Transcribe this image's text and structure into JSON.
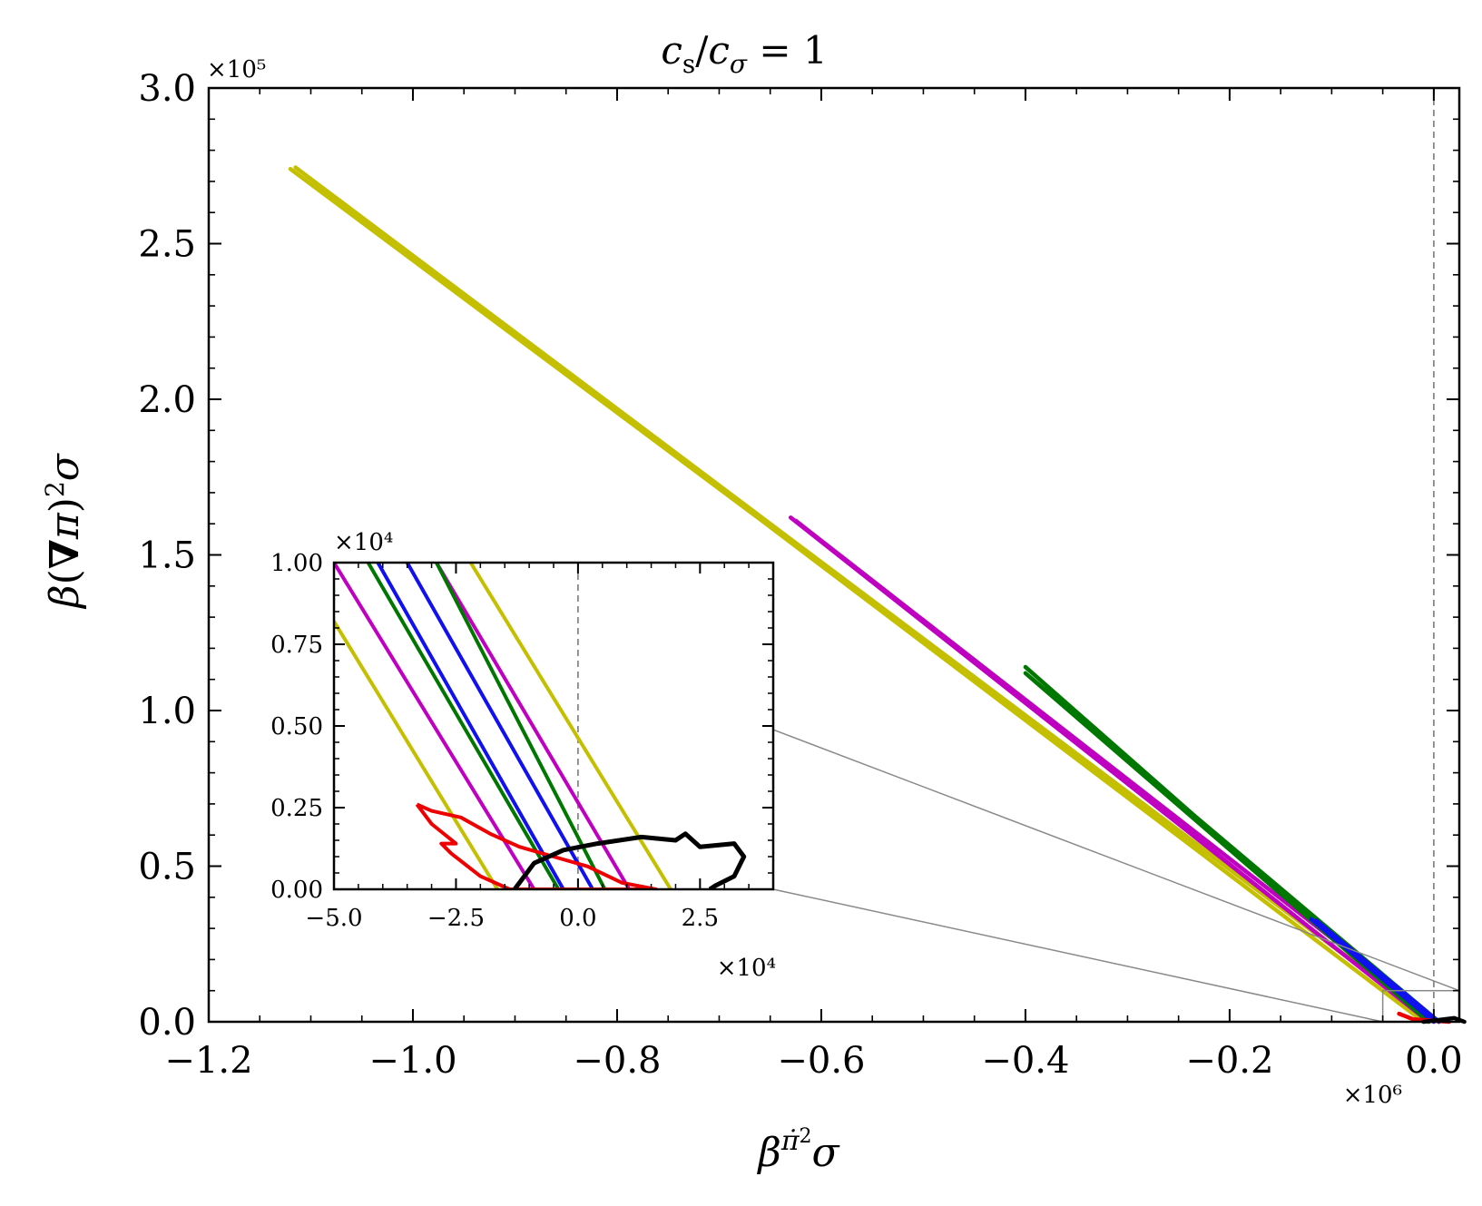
{
  "chart_data": {
    "type": "line",
    "title": "c_s/c_σ = 1",
    "xlabel": "βπ̇²σ",
    "ylabel": "β(∇π)²σ",
    "x_multiplier": "×10⁶",
    "y_multiplier": "×10⁵",
    "xlim": [
      -1.2,
      0.025
    ],
    "ylim": [
      0.0,
      3.0
    ],
    "x_ticks": [
      -1.2,
      -1.0,
      -0.8,
      -0.6,
      -0.4,
      -0.2,
      0.0
    ],
    "x_tick_labels": [
      "−1.2",
      "−1.0",
      "−0.8",
      "−0.6",
      "−0.4",
      "−0.2",
      "0.0"
    ],
    "y_ticks": [
      0.0,
      0.5,
      1.0,
      1.5,
      2.0,
      2.5,
      3.0
    ],
    "y_tick_labels": [
      "0.0",
      "0.5",
      "1.0",
      "1.5",
      "2.0",
      "2.5",
      "3.0"
    ],
    "vline_x": 0.0,
    "zoom_box": {
      "x": [
        -0.05,
        0.04
      ],
      "y": [
        0.0,
        0.1
      ]
    },
    "series": [
      {
        "name": "yellow",
        "color": "#c4bf00",
        "points": [
          [
            -1.12,
            2.74
          ],
          [
            0.0,
            0.0
          ],
          [
            -1.115,
            2.745
          ],
          [
            -0.01,
            0.0
          ]
        ]
      },
      {
        "name": "magenta",
        "color": "#c000c0",
        "points": [
          [
            -0.63,
            1.62
          ],
          [
            -0.005,
            0.0
          ],
          [
            -0.625,
            1.61
          ],
          [
            0.005,
            0.0
          ]
        ]
      },
      {
        "name": "green",
        "color": "#007700",
        "points": [
          [
            -0.4,
            1.14
          ],
          [
            -0.005,
            0.0
          ],
          [
            -0.4,
            1.12
          ],
          [
            0.005,
            0.0
          ]
        ]
      },
      {
        "name": "blue",
        "color": "#1010f0",
        "points": [
          [
            -0.12,
            0.33
          ],
          [
            0.0,
            0.0
          ],
          [
            -0.115,
            0.325
          ],
          [
            0.005,
            0.0
          ]
        ]
      },
      {
        "name": "red",
        "color": "#ee0000",
        "points": [
          [
            -0.034,
            0.026
          ],
          [
            -0.02,
            0.008
          ],
          [
            0.015,
            0.0
          ]
        ]
      },
      {
        "name": "black",
        "color": "#000000",
        "points": [
          [
            -0.01,
            0.0
          ],
          [
            0.02,
            0.012
          ],
          [
            0.03,
            0.0
          ]
        ]
      }
    ],
    "inset": {
      "xlim": [
        -5.0,
        4.0
      ],
      "ylim": [
        0.0,
        1.0
      ],
      "x_multiplier": "×10⁴",
      "y_multiplier": "×10⁴",
      "x_ticks": [
        -5.0,
        -2.5,
        0.0,
        2.5
      ],
      "x_tick_labels": [
        "−5.0",
        "−2.5",
        "0.0",
        "2.5"
      ],
      "y_ticks": [
        0.0,
        0.25,
        0.5,
        0.75,
        1.0
      ],
      "y_tick_labels": [
        "0.00",
        "0.25",
        "0.50",
        "0.75",
        "1.00"
      ],
      "vline_x": 0.0,
      "lines": [
        {
          "color": "#c4bf00",
          "points": [
            [
              -5.0,
              0.82
            ],
            [
              -1.65,
              0.0
            ]
          ]
        },
        {
          "color": "#c4bf00",
          "points": [
            [
              -2.2,
              1.0
            ],
            [
              1.9,
              0.0
            ]
          ]
        },
        {
          "color": "#c000c0",
          "points": [
            [
              -5.0,
              1.0
            ],
            [
              -0.9,
              0.0
            ]
          ]
        },
        {
          "color": "#c000c0",
          "points": [
            [
              -2.9,
              1.0
            ],
            [
              1.05,
              0.0
            ]
          ]
        },
        {
          "color": "#007700",
          "points": [
            [
              -4.3,
              1.0
            ],
            [
              -0.4,
              0.0
            ]
          ]
        },
        {
          "color": "#007700",
          "points": [
            [
              -2.9,
              1.0
            ],
            [
              0.55,
              0.0
            ]
          ]
        },
        {
          "color": "#1010f0",
          "points": [
            [
              -4.1,
              1.0
            ],
            [
              -0.3,
              0.0
            ]
          ]
        },
        {
          "color": "#1010f0",
          "points": [
            [
              -3.5,
              1.0
            ],
            [
              0.3,
              0.0
            ]
          ]
        }
      ],
      "red_loop": [
        [
          -3.3,
          0.26
        ],
        [
          -3.0,
          0.24
        ],
        [
          -2.4,
          0.22
        ],
        [
          -1.8,
          0.17
        ],
        [
          -1.2,
          0.13
        ],
        [
          -0.5,
          0.1
        ],
        [
          0.2,
          0.07
        ],
        [
          0.9,
          0.02
        ],
        [
          1.6,
          0.0
        ],
        [
          0.0,
          0.0
        ],
        [
          -1.4,
          0.0
        ],
        [
          -2.0,
          0.04
        ],
        [
          -2.6,
          0.11
        ],
        [
          -2.8,
          0.14
        ],
        [
          -2.5,
          0.14
        ],
        [
          -3.0,
          0.2
        ],
        [
          -3.3,
          0.26
        ]
      ],
      "black_loop": [
        [
          -1.3,
          0.0
        ],
        [
          -0.9,
          0.08
        ],
        [
          -0.3,
          0.12
        ],
        [
          0.4,
          0.14
        ],
        [
          1.3,
          0.16
        ],
        [
          2.0,
          0.15
        ],
        [
          2.2,
          0.17
        ],
        [
          2.5,
          0.13
        ],
        [
          3.2,
          0.14
        ],
        [
          3.4,
          0.1
        ],
        [
          3.2,
          0.04
        ],
        [
          2.8,
          0.01
        ],
        [
          2.7,
          0.0
        ]
      ]
    }
  }
}
